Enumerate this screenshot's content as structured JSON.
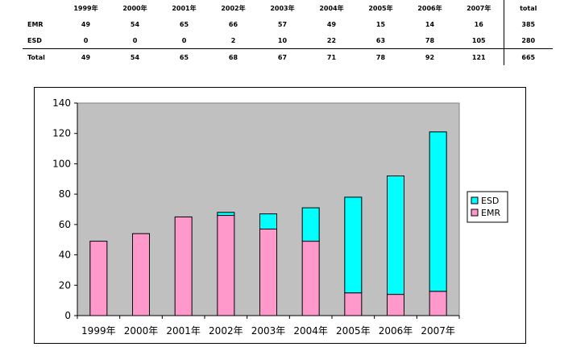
{
  "table": {
    "headers": [
      "",
      "1999年",
      "2000年",
      "2001年",
      "2002年",
      "2003年",
      "2004年",
      "2005年",
      "2006年",
      "2007年",
      "total"
    ],
    "rows": [
      {
        "label": "EMR",
        "values": [
          "49",
          "54",
          "65",
          "66",
          "57",
          "49",
          "15",
          "14",
          "16",
          "385"
        ]
      },
      {
        "label": "ESD",
        "values": [
          "0",
          "0",
          "0",
          "2",
          "10",
          "22",
          "63",
          "78",
          "105",
          "280"
        ]
      },
      {
        "label": "Total",
        "values": [
          "49",
          "54",
          "65",
          "68",
          "67",
          "71",
          "78",
          "92",
          "121",
          "665"
        ]
      }
    ]
  },
  "chart_data": {
    "type": "bar",
    "stacked": true,
    "categories": [
      "1999年",
      "2000年",
      "2001年",
      "2002年",
      "2003年",
      "2004年",
      "2005年",
      "2006年",
      "2007年"
    ],
    "series": [
      {
        "name": "EMR",
        "values": [
          49,
          54,
          65,
          66,
          57,
          49,
          15,
          14,
          16
        ],
        "color": "#ff99cc"
      },
      {
        "name": "ESD",
        "values": [
          0,
          0,
          0,
          2,
          10,
          22,
          63,
          78,
          105
        ],
        "color": "#00ffff"
      }
    ],
    "ylim": [
      0,
      140
    ],
    "yticks": [
      0,
      20,
      40,
      60,
      80,
      100,
      120,
      140
    ],
    "legend": {
      "placement": "right",
      "entries": [
        "ESD",
        "EMR"
      ]
    },
    "plot_background": "#c0c0c0"
  }
}
